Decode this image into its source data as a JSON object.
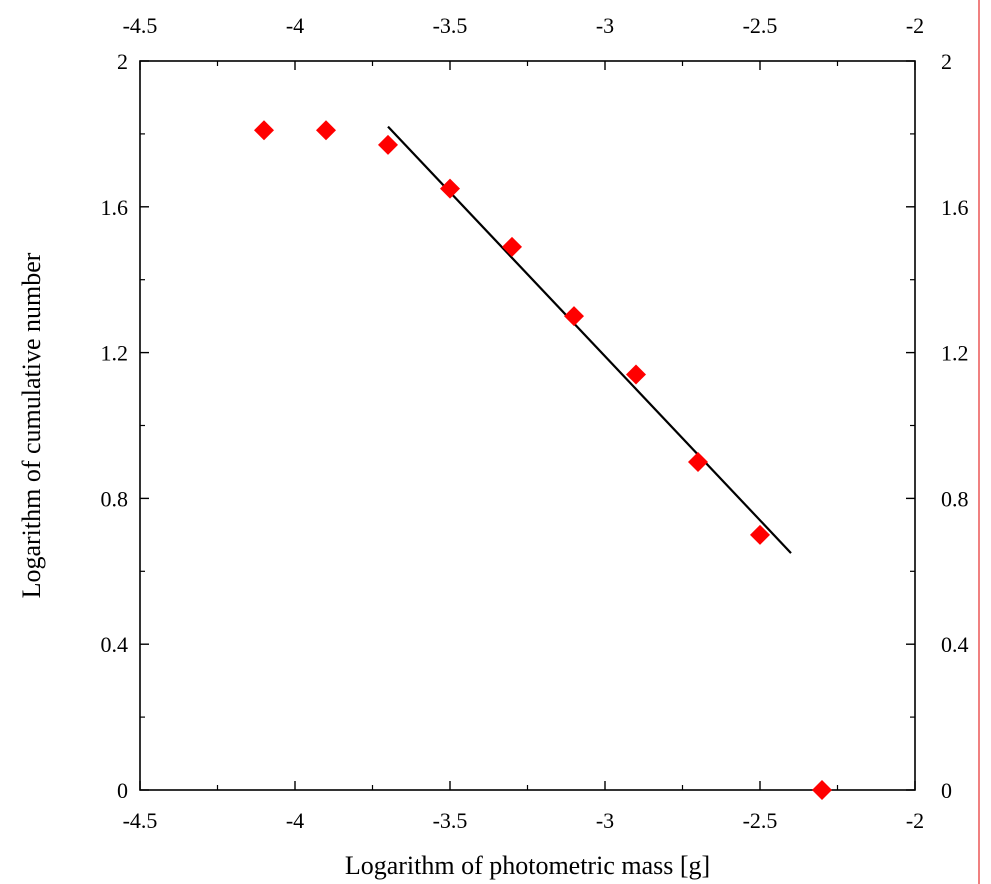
{
  "colors": {
    "background": "#ffffff",
    "axis": "#000000",
    "marker": "#ff0000",
    "fit_line": "#000000",
    "right_edge_rule": "#f08080"
  },
  "chart_data": {
    "type": "scatter",
    "title": "",
    "xlabel": "Logarithm of photometric mass [g]",
    "ylabel": "Logarithm of cumulative number",
    "xlim": [
      -4.5,
      -2
    ],
    "ylim": [
      0,
      2
    ],
    "x_ticks": [
      -4.5,
      -4,
      -3.5,
      -3,
      -2.5,
      -2
    ],
    "x_tick_labels": [
      "-4.5",
      "-4",
      "-3.5",
      "-3",
      "-2.5",
      "-2"
    ],
    "y_ticks": [
      0,
      0.4,
      0.8,
      1.2,
      1.6,
      2
    ],
    "y_tick_labels": [
      "0",
      "0.4",
      "0.8",
      "1.2",
      "1.6",
      "2"
    ],
    "grid": false,
    "mirrored_axes": true,
    "marker": "diamond",
    "series": [
      {
        "x": [
          -4.1,
          -3.9,
          -3.7,
          -3.5,
          -3.3,
          -3.1,
          -2.9,
          -2.7,
          -2.5,
          -2.3
        ],
        "y": [
          1.81,
          1.81,
          1.77,
          1.65,
          1.49,
          1.3,
          1.14,
          0.9,
          0.7,
          0.0
        ]
      }
    ],
    "fit_line": {
      "x": [
        -3.7,
        -2.4
      ],
      "y": [
        1.82,
        0.65
      ]
    }
  }
}
